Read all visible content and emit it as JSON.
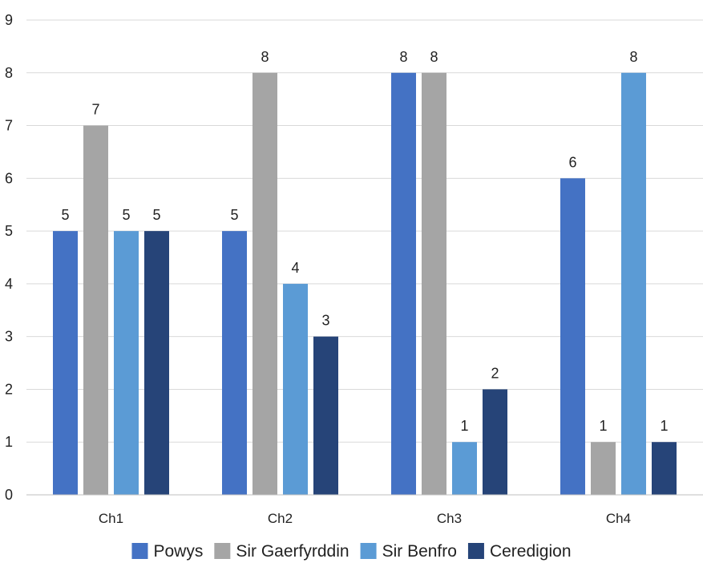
{
  "chart_data": {
    "type": "bar",
    "categories": [
      "Ch1",
      "Ch2",
      "Ch3",
      "Ch4"
    ],
    "series": [
      {
        "name": "Powys",
        "color": "#4472c4",
        "values": [
          5,
          5,
          8,
          6
        ]
      },
      {
        "name": "Sir Gaerfyrddin",
        "color": "#a5a5a5",
        "values": [
          7,
          8,
          8,
          1
        ]
      },
      {
        "name": "Sir Benfro",
        "color": "#5b9bd5",
        "values": [
          5,
          4,
          1,
          8
        ]
      },
      {
        "name": "Ceredigion",
        "color": "#264478",
        "values": [
          5,
          3,
          2,
          1
        ]
      }
    ],
    "title": "",
    "xlabel": "",
    "ylabel": "",
    "ylim": [
      0,
      9
    ],
    "yticks": [
      0,
      1,
      2,
      3,
      4,
      5,
      6,
      7,
      8,
      9
    ],
    "grid": true,
    "legend_position": "bottom",
    "data_labels": true
  }
}
